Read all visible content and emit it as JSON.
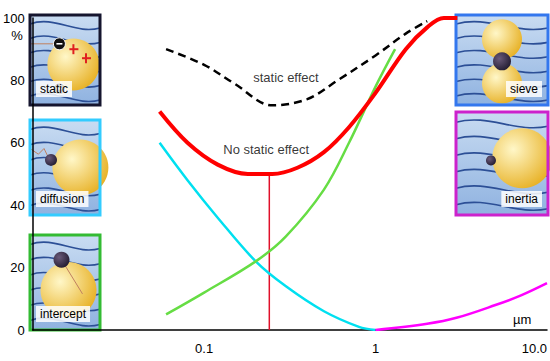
{
  "chart_data": {
    "type": "line",
    "log": "x",
    "grid": false,
    "xlabel": "µm",
    "ylabel": "%",
    "xlim": [
      0.01,
      10
    ],
    "ylim": [
      0,
      100
    ],
    "xticks": [
      0.1,
      1,
      {
        "value": 10,
        "label": "10.0"
      }
    ],
    "yticks": [
      0,
      20,
      40,
      60,
      80,
      100
    ],
    "series": [
      {
        "name": "static effect",
        "color": "#000000",
        "line_style": "dashed",
        "x": [
          0.06,
          0.1,
          0.15,
          0.25,
          0.4,
          0.6,
          1,
          1.5,
          2
        ],
        "values": [
          90,
          85,
          79,
          72,
          74,
          80,
          88,
          95,
          99
        ],
        "label_x": 0.3,
        "label_y": 81
      },
      {
        "name": "No static effect",
        "color": "#ff0000",
        "line_style": "solid",
        "x": [
          0.055,
          0.08,
          0.12,
          0.18,
          0.25,
          0.35,
          0.5,
          0.7,
          1,
          1.5,
          2,
          2.5,
          3
        ],
        "values": [
          70,
          60,
          53,
          50,
          50,
          52,
          57,
          65,
          76,
          90,
          97,
          100,
          100
        ],
        "label_x": 0.23,
        "label_y": 58
      },
      {
        "name": "diffusion",
        "color": "#00e0f0",
        "line_style": "solid",
        "x": [
          0.055,
          0.08,
          0.12,
          0.2,
          0.3,
          0.5,
          0.8,
          1
        ],
        "values": [
          60,
          48,
          36,
          22,
          14,
          6,
          1,
          0
        ]
      },
      {
        "name": "intercept",
        "color": "#66dd44",
        "line_style": "solid",
        "x": [
          0.06,
          0.1,
          0.2,
          0.3,
          0.5,
          0.7,
          1,
          1.3
        ],
        "values": [
          5,
          12,
          22,
          30,
          45,
          60,
          78,
          90
        ]
      },
      {
        "name": "inertia",
        "color": "#ff00ff",
        "line_style": "solid",
        "x": [
          1,
          2,
          3,
          5,
          7,
          10
        ],
        "values": [
          0,
          2,
          4,
          8,
          11,
          15
        ]
      }
    ],
    "reference_line": {
      "x": 0.24,
      "y": [
        0,
        50
      ],
      "color": "#e0102a"
    },
    "insets": [
      {
        "label": "static",
        "color": "#15152e"
      },
      {
        "label": "diffusion",
        "color": "#33ccff"
      },
      {
        "label": "intercept",
        "color": "#33bb33"
      },
      {
        "label": "sieve",
        "color": "#3377ee"
      },
      {
        "label": "inertia",
        "color": "#cc22cc"
      }
    ]
  }
}
